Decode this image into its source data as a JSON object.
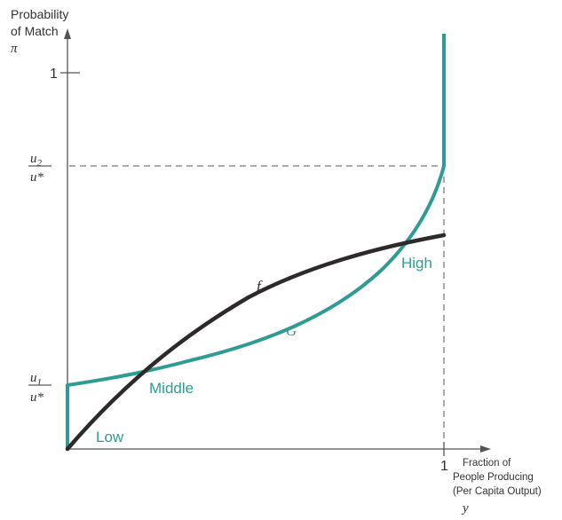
{
  "colors": {
    "f_curve": "#2e2a2a",
    "g_curve": "#2f9c93",
    "axis": "#555555",
    "text": "#333333",
    "region_label": "#2f9c93"
  },
  "labels": {
    "y_axis_title_line1": "Probability",
    "y_axis_title_line2": "of Match",
    "y_axis_symbol": "π",
    "x_axis_title_line1": "Fraction of",
    "x_axis_title_line2": "People Producing",
    "x_axis_title_line3": "(Per Capita Output)",
    "x_axis_symbol": "y",
    "y_tick_one": "1",
    "x_tick_one": "1",
    "u2_num": "u",
    "u2_sub": "2",
    "u1_num": "u",
    "u1_sub": "1",
    "u_star": "u*",
    "region_low": "Low",
    "region_middle": "Middle",
    "region_high": "High",
    "curve_f": "f",
    "curve_g": "G"
  },
  "chart_data": {
    "type": "line",
    "xlim": [
      0,
      1
    ],
    "ylim": [
      0,
      1.1
    ],
    "reference_levels": {
      "u1_over_ustar": 0.18,
      "u2_over_ustar": 0.75
    },
    "series": [
      {
        "name": "f",
        "x": [
          0,
          0.1,
          0.23,
          0.4,
          0.55,
          0.7,
          0.85,
          0.93,
          1.0
        ],
        "y": [
          0,
          0.08,
          0.2,
          0.33,
          0.43,
          0.5,
          0.54,
          0.555,
          0.565
        ]
      },
      {
        "name": "G",
        "x": [
          0,
          0,
          0.1,
          0.23,
          0.4,
          0.55,
          0.7,
          0.8,
          0.88,
          0.93,
          0.97,
          1.0,
          1.0
        ],
        "y": [
          0,
          0.165,
          0.18,
          0.2,
          0.26,
          0.31,
          0.38,
          0.44,
          0.5,
          0.555,
          0.63,
          0.75,
          1.1
        ]
      }
    ],
    "annotations": [
      "Low",
      "Middle",
      "High"
    ]
  }
}
